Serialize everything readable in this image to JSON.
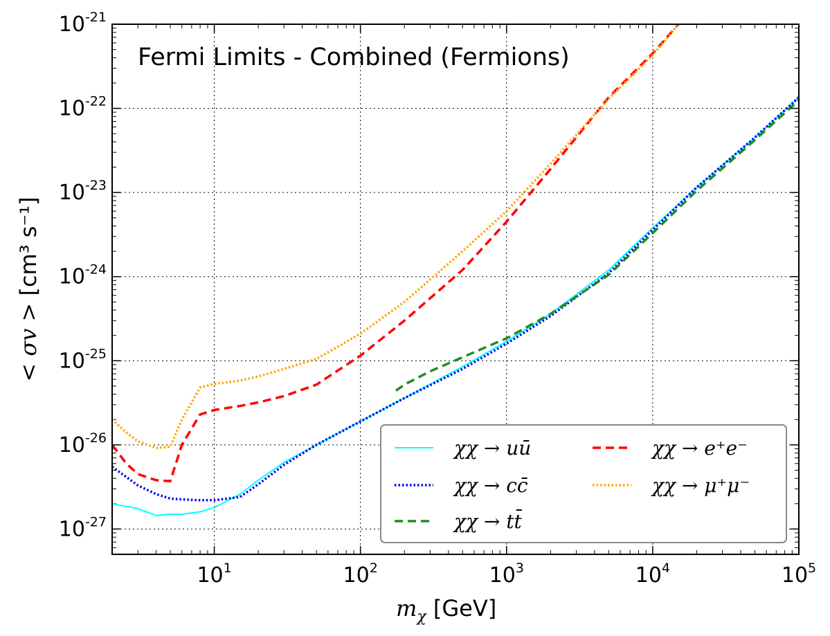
{
  "chart_data": {
    "type": "line",
    "title": "Fermi Limits - Combined (Fermions)",
    "xlabel": "m_χ [GeV]",
    "xlabel_math": "m",
    "xlabel_sub": "χ",
    "xlabel_unit": " [GeV]",
    "ylabel": "< σv > [cm³ s⁻¹]",
    "ylabel_math": "< σv >",
    "ylabel_unit": "[cm³ s⁻¹]",
    "xscale": "log",
    "yscale": "log",
    "xlim": [
      2,
      100000
    ],
    "ylim": [
      5e-28,
      1e-21
    ],
    "grid": true,
    "legend_position": "lower-right",
    "legend_columns": 2,
    "x_ticks": [
      {
        "base": "10",
        "exp": "1",
        "value": 10
      },
      {
        "base": "10",
        "exp": "2",
        "value": 100
      },
      {
        "base": "10",
        "exp": "3",
        "value": 1000
      },
      {
        "base": "10",
        "exp": "4",
        "value": 10000
      },
      {
        "base": "10",
        "exp": "5",
        "value": 100000
      }
    ],
    "y_ticks": [
      {
        "base": "10",
        "exp": "-27",
        "value": 1e-27
      },
      {
        "base": "10",
        "exp": "-26",
        "value": 1e-26
      },
      {
        "base": "10",
        "exp": "-25",
        "value": 1e-25
      },
      {
        "base": "10",
        "exp": "-24",
        "value": 1e-24
      },
      {
        "base": "10",
        "exp": "-23",
        "value": 1e-23
      },
      {
        "base": "10",
        "exp": "-22",
        "value": 1e-22
      },
      {
        "base": "10",
        "exp": "-21",
        "value": 1e-21
      }
    ],
    "series": [
      {
        "name": "χχ → u ū",
        "legend_label": "χχ → uū",
        "color": "#00ffff",
        "style": "solid",
        "x": [
          2,
          3,
          4,
          5,
          6,
          8,
          10,
          15,
          20,
          30,
          50,
          100,
          200,
          500,
          1000,
          2000,
          5000,
          10000,
          20000,
          50000,
          100000
        ],
        "y": [
          2e-27,
          1.75e-27,
          1.45e-27,
          1.5e-27,
          1.5e-27,
          1.6e-27,
          1.8e-27,
          2.6e-27,
          3.8e-27,
          6.2e-27,
          1e-26,
          1.9e-26,
          3.6e-26,
          8.5e-26,
          1.7e-25,
          3.6e-25,
          1.2e-24,
          3.8e-24,
          1.15e-23,
          4.5e-23,
          1.35e-22
        ]
      },
      {
        "name": "χχ → c c̄",
        "legend_label": "χχ → cc̄",
        "color": "#0000ee",
        "style": "dotted",
        "x": [
          2,
          3,
          4,
          5,
          6,
          8,
          10,
          15,
          20,
          30,
          50,
          100,
          200,
          500,
          1000,
          2000,
          5000,
          10000,
          20000,
          50000,
          100000
        ],
        "y": [
          5.5e-27,
          3.3e-27,
          2.6e-27,
          2.3e-27,
          2.25e-27,
          2.2e-27,
          2.2e-27,
          2.4e-27,
          3.4e-27,
          5.8e-27,
          1e-26,
          1.9e-26,
          3.6e-26,
          8e-26,
          1.6e-25,
          3.4e-25,
          1.1e-24,
          3.6e-24,
          1.15e-23,
          4.5e-23,
          1.35e-22
        ]
      },
      {
        "name": "χχ → t t̄",
        "legend_label": "χχ → tt̄",
        "color": "#228b22",
        "style": "dashed",
        "x": [
          175,
          200,
          300,
          500,
          1000,
          2000,
          5000,
          10000,
          20000,
          50000,
          100000
        ],
        "y": [
          4.4e-26,
          5.2e-26,
          7.5e-26,
          1.1e-25,
          1.85e-25,
          3.6e-25,
          1.05e-24,
          3.3e-24,
          1.05e-23,
          4.2e-23,
          1.25e-22
        ]
      },
      {
        "name": "χχ → e⁺ e⁻",
        "legend_label": "χχ → e⁺e⁻",
        "color": "#ff0000",
        "style": "dashed",
        "x": [
          2,
          2.5,
          3,
          4,
          5,
          6,
          8,
          10,
          15,
          20,
          30,
          50,
          100,
          200,
          500,
          1000,
          2000,
          5000,
          10000,
          15000
        ],
        "y": [
          1e-26,
          6e-27,
          4.5e-27,
          3.8e-27,
          3.7e-27,
          1e-26,
          2.3e-26,
          2.6e-26,
          2.9e-26,
          3.2e-26,
          3.8e-26,
          5.2e-26,
          1.15e-25,
          3e-25,
          1.2e-24,
          4.5e-24,
          1.9e-23,
          1.35e-22,
          4.5e-22,
          1e-21
        ]
      },
      {
        "name": "χχ → μ⁺ μ⁻",
        "legend_label": "χχ → μ⁺μ⁻",
        "color": "#ffa500",
        "style": "dotted",
        "x": [
          2,
          2.5,
          3,
          4,
          5,
          6,
          8,
          10,
          15,
          20,
          30,
          50,
          100,
          200,
          500,
          1000,
          2000,
          5000,
          10000,
          15000
        ],
        "y": [
          2e-26,
          1.4e-26,
          1.1e-26,
          9.2e-27,
          9.5e-27,
          2e-26,
          4.8e-26,
          5.3e-26,
          5.8e-26,
          6.5e-26,
          8e-26,
          1.05e-25,
          2.1e-25,
          5e-25,
          2e-24,
          6e-24,
          2.2e-23,
          1.3e-22,
          4.3e-22,
          1e-21
        ]
      }
    ]
  }
}
